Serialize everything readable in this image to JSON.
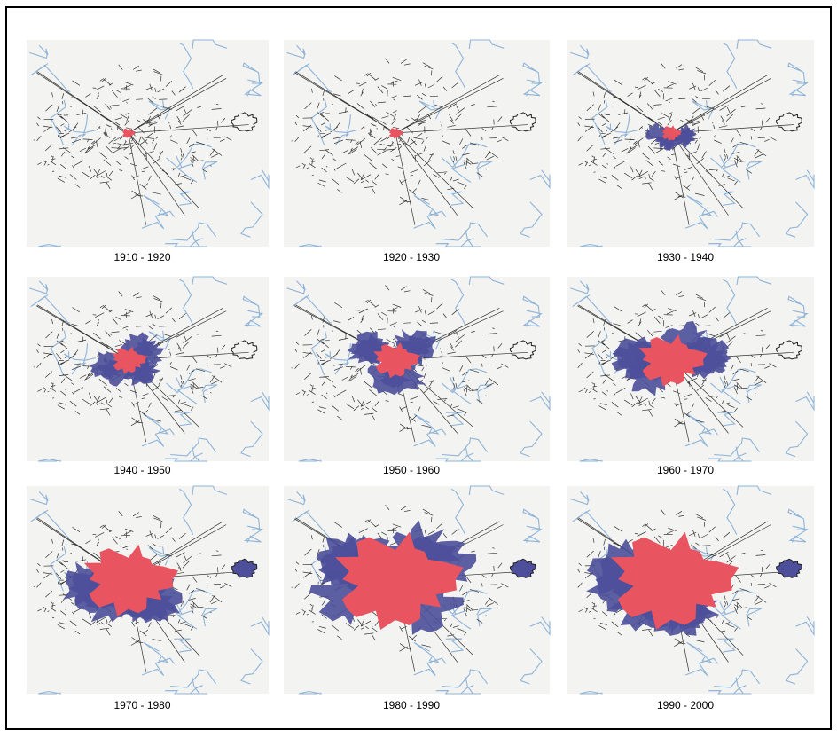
{
  "panels": [
    {
      "caption": "1910 - 1920"
    },
    {
      "caption": "1920 - 1930"
    },
    {
      "caption": "1930 - 1940"
    },
    {
      "caption": "1940 - 1950"
    },
    {
      "caption": "1950 - 1960"
    },
    {
      "caption": "1960 - 1970"
    },
    {
      "caption": "1970 - 1980"
    },
    {
      "caption": "1980 - 1990"
    },
    {
      "caption": "1990 - 2000"
    }
  ]
}
